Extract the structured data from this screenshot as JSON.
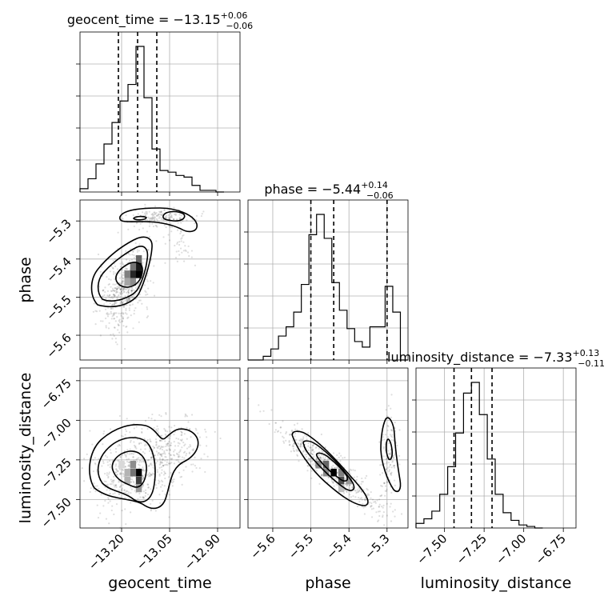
{
  "chart_data": {
    "type": "corner",
    "parameters": [
      "geocent_time",
      "phase",
      "luminosity_distance"
    ],
    "axis_labels": {
      "x": [
        "geocent_time",
        "phase",
        "luminosity_distance"
      ],
      "y": [
        "phase",
        "luminosity_distance"
      ]
    },
    "titles": [
      {
        "name": "geocent_time",
        "value": "−13.15",
        "plus": "+0.06",
        "minus": "−0.06"
      },
      {
        "name": "phase",
        "value": "−5.44",
        "plus": "+0.14",
        "minus": "−0.06"
      },
      {
        "name": "luminosity_distance",
        "value": "−7.33",
        "plus": "+0.13",
        "minus": "−0.11"
      }
    ],
    "ranges": {
      "geocent_time": [
        -13.33,
        -12.83
      ],
      "phase": [
        -5.665,
        -5.245
      ],
      "luminosity_distance": [
        -7.68,
        -6.67
      ]
    },
    "ticks": {
      "geocent_time": {
        "values": [
          -13.2,
          -13.05,
          -12.9
        ],
        "labels": [
          "−13.20",
          "−13.05",
          "−12.90"
        ]
      },
      "phase": {
        "values": [
          -5.6,
          -5.5,
          -5.4,
          -5.3
        ],
        "labels": [
          "−5.6",
          "−5.5",
          "−5.4",
          "−5.3"
        ]
      },
      "luminosity_distance": {
        "values": [
          -7.5,
          -7.25,
          -7.0,
          -6.75
        ],
        "labels": [
          "−7.50",
          "−7.25",
          "−7.00",
          "−6.75"
        ]
      }
    },
    "quantiles": {
      "geocent_time": [
        -13.21,
        -13.15,
        -13.09
      ],
      "phase": [
        -5.5,
        -5.44,
        -5.3
      ],
      "luminosity_distance": [
        -7.44,
        -7.33,
        -7.2
      ]
    },
    "histograms": {
      "geocent_time": {
        "edges": [
          -13.33,
          -13.305,
          -13.28,
          -13.255,
          -13.23,
          -13.205,
          -13.18,
          -13.155,
          -13.13,
          -13.105,
          -13.08,
          -13.055,
          -13.03,
          -13.005,
          -12.98,
          -12.955,
          -12.93,
          -12.905,
          -12.88
        ],
        "counts": [
          2,
          8,
          17,
          29,
          42,
          55,
          65,
          88,
          57,
          26,
          13,
          12,
          10,
          9,
          4,
          1,
          1,
          0
        ]
      },
      "phase": {
        "edges": [
          -5.665,
          -5.645,
          -5.625,
          -5.605,
          -5.585,
          -5.565,
          -5.545,
          -5.525,
          -5.505,
          -5.485,
          -5.465,
          -5.445,
          -5.425,
          -5.405,
          -5.385,
          -5.365,
          -5.345,
          -5.325,
          -5.305,
          -5.285,
          -5.265,
          -5.245
        ],
        "counts": [
          0,
          0,
          2,
          6,
          13,
          18,
          26,
          41,
          68,
          79,
          66,
          42,
          27,
          17,
          10,
          7,
          18,
          18,
          40,
          26,
          0
        ]
      },
      "luminosity_distance": {
        "edges": [
          -7.68,
          -7.63,
          -7.58,
          -7.53,
          -7.48,
          -7.43,
          -7.38,
          -7.33,
          -7.28,
          -7.23,
          -7.18,
          -7.13,
          -7.08,
          -7.03,
          -6.98,
          -6.93,
          -6.88
        ],
        "counts": [
          3,
          6,
          11,
          22,
          40,
          62,
          88,
          95,
          74,
          45,
          22,
          10,
          5,
          2,
          1,
          0
        ]
      }
    },
    "density_cells": [
      {
        "panel": "phase-vs-geocent_time",
        "x": -13.164,
        "y": -5.44,
        "shade": 0.85
      },
      {
        "panel": "phase-vs-geocent_time",
        "x": -13.146,
        "y": -5.44,
        "shade": 1.0
      },
      {
        "panel": "phase-vs-geocent_time",
        "x": -13.146,
        "y": -5.42,
        "shade": 0.9
      },
      {
        "panel": "phase-vs-geocent_time",
        "x": -13.146,
        "y": -5.4,
        "shade": 0.6
      },
      {
        "panel": "phase-vs-geocent_time",
        "x": -13.164,
        "y": -5.42,
        "shade": 0.55
      },
      {
        "panel": "phase-vs-geocent_time",
        "x": -13.182,
        "y": -5.44,
        "shade": 0.5
      },
      {
        "panel": "phase-vs-geocent_time",
        "x": -13.182,
        "y": -5.46,
        "shade": 0.35
      },
      {
        "panel": "phase-vs-geocent_time",
        "x": -13.164,
        "y": -5.46,
        "shade": 0.45
      },
      {
        "panel": "luminosity_distance-vs-geocent_time",
        "x": -13.146,
        "y": -7.33,
        "shade": 1.0
      },
      {
        "panel": "luminosity_distance-vs-geocent_time",
        "x": -13.146,
        "y": -7.38,
        "shade": 0.75
      },
      {
        "panel": "luminosity_distance-vs-geocent_time",
        "x": -13.164,
        "y": -7.33,
        "shade": 0.55
      },
      {
        "panel": "luminosity_distance-vs-geocent_time",
        "x": -13.164,
        "y": -7.28,
        "shade": 0.45
      },
      {
        "panel": "luminosity_distance-vs-geocent_time",
        "x": -13.146,
        "y": -7.43,
        "shade": 0.4
      },
      {
        "panel": "luminosity_distance-vs-geocent_time",
        "x": -13.182,
        "y": -7.33,
        "shade": 0.3
      },
      {
        "panel": "luminosity_distance-vs-geocent_time",
        "x": -13.182,
        "y": -7.38,
        "shade": 0.3
      },
      {
        "panel": "luminosity_distance-vs-geocent_time",
        "x": -13.2,
        "y": -7.28,
        "shade": 0.15
      },
      {
        "panel": "luminosity_distance-vs-phase",
        "x": -5.44,
        "y": -7.33,
        "shade": 1.0
      },
      {
        "panel": "luminosity_distance-vs-phase",
        "x": -5.42,
        "y": -7.38,
        "shade": 0.7
      },
      {
        "panel": "luminosity_distance-vs-phase",
        "x": -5.46,
        "y": -7.28,
        "shade": 0.6
      },
      {
        "panel": "luminosity_distance-vs-phase",
        "x": -5.48,
        "y": -7.28,
        "shade": 0.45
      },
      {
        "panel": "luminosity_distance-vs-phase",
        "x": -5.42,
        "y": -7.33,
        "shade": 0.5
      },
      {
        "panel": "luminosity_distance-vs-phase",
        "x": -5.4,
        "y": -7.38,
        "shade": 0.4
      },
      {
        "panel": "luminosity_distance-vs-phase",
        "x": -5.46,
        "y": -7.33,
        "shade": 0.45
      },
      {
        "panel": "luminosity_distance-vs-phase",
        "x": -5.42,
        "y": -7.43,
        "shade": 0.25
      }
    ],
    "grid": true
  }
}
